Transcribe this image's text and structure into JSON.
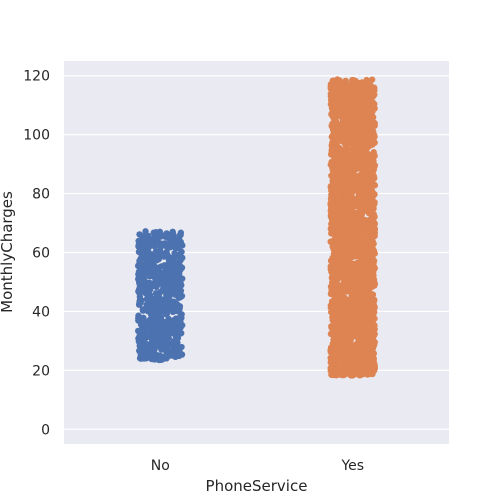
{
  "chart_data": {
    "type": "scatter",
    "subtype": "strip",
    "title": "",
    "xlabel": "PhoneService",
    "ylabel": "MonthlyCharges",
    "categories": [
      "No",
      "Yes"
    ],
    "ylim": [
      -5,
      125
    ],
    "yticks": [
      0,
      20,
      40,
      60,
      80,
      100,
      120
    ],
    "grid": true,
    "legend": "none",
    "series": [
      {
        "category": "No",
        "color": "#4c72b0",
        "min": 23.45,
        "max": 67.2,
        "count": 682
      },
      {
        "category": "Yes",
        "color": "#dd8452",
        "min": 18.25,
        "max": 118.75,
        "count": 6361
      }
    ]
  }
}
